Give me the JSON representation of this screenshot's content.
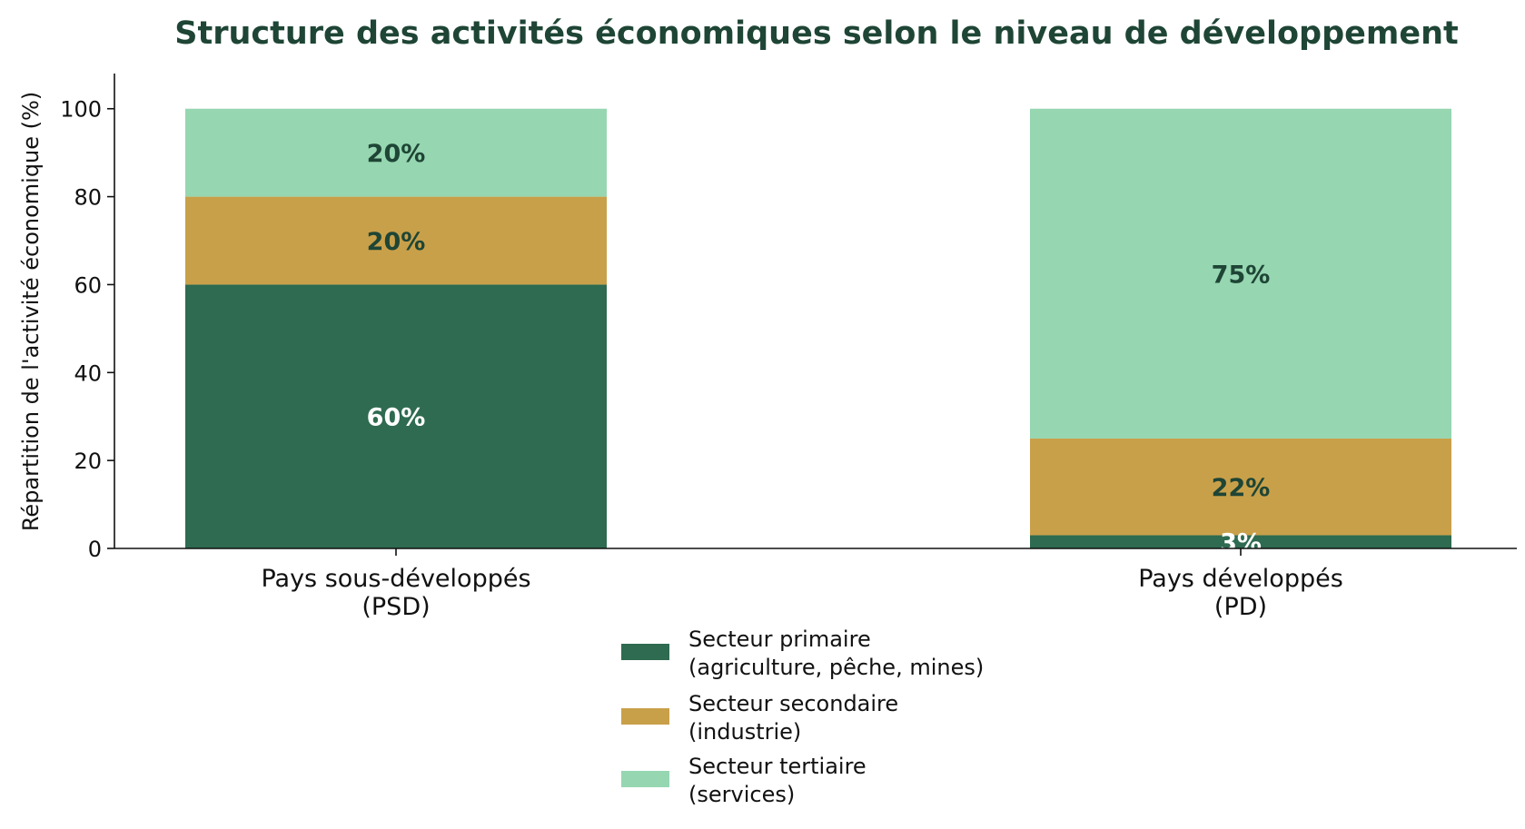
{
  "chart_data": {
    "type": "bar",
    "stacked": true,
    "title": "Structure des activités économiques selon le niveau de développement",
    "xlabel": "",
    "ylabel": "Répartition de l'activité économique (%)",
    "ylim": [
      0,
      108
    ],
    "yticks": [
      0,
      20,
      40,
      60,
      80,
      100
    ],
    "grid": false,
    "legend_position": "bottom-center",
    "categories": [
      [
        "Pays sous-développés",
        "(PSD)"
      ],
      [
        "Pays développés",
        "(PD)"
      ]
    ],
    "series": [
      {
        "name": [
          "Secteur primaire",
          "(agriculture, pêche, mines)"
        ],
        "values": [
          60,
          3
        ],
        "labels": [
          "60%",
          "3%"
        ],
        "color": "#2e6b50",
        "label_color": "#ffffff"
      },
      {
        "name": [
          "Secteur secondaire",
          "(industrie)"
        ],
        "values": [
          20,
          22
        ],
        "labels": [
          "20%",
          "22%"
        ],
        "color": "#c9a04a",
        "label_color": "#1e4535"
      },
      {
        "name": [
          "Secteur tertiaire",
          "(services)"
        ],
        "values": [
          20,
          75
        ],
        "labels": [
          "20%",
          "75%"
        ],
        "color": "#96d6b1",
        "label_color": "#1e4535"
      }
    ]
  }
}
